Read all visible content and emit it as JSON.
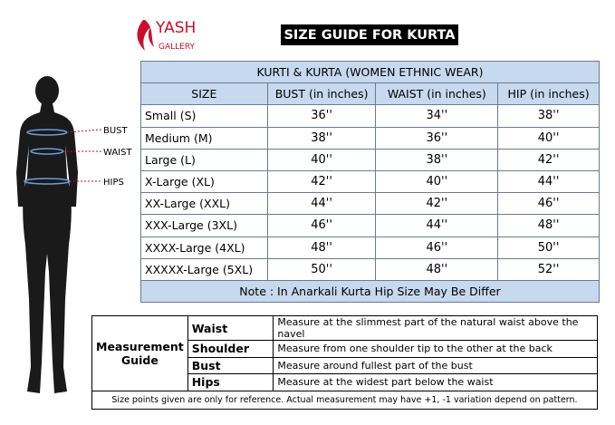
{
  "logo": {
    "name": "YASH",
    "subtitle": "GALLERY"
  },
  "header": {
    "title": "SIZE GUIDE FOR KURTA"
  },
  "figure_labels": [
    "BUST",
    "WAIST",
    "HIPS"
  ],
  "size_table": {
    "caption": "KURTI & KURTA (WOMEN ETHNIC WEAR)",
    "columns": [
      "SIZE",
      "BUST (in inches)",
      "WAIST (in inches)",
      "HIP (in inches)"
    ],
    "rows": [
      [
        "Small (S)",
        "36''",
        "34''",
        "38''"
      ],
      [
        "Medium (M)",
        "38''",
        "36''",
        "40''"
      ],
      [
        "Large (L)",
        "40''",
        "38''",
        "42''"
      ],
      [
        "X-Large (XL)",
        "42''",
        "40''",
        "44''"
      ],
      [
        "XX-Large (XXL)",
        "44''",
        "42''",
        "46''"
      ],
      [
        "XXX-Large (3XL)",
        "46''",
        "44''",
        "48''"
      ],
      [
        "XXXX-Large (4XL)",
        "48''",
        "46''",
        "50''"
      ],
      [
        "XXXXX-Large (5XL)",
        "50''",
        "48''",
        "52''"
      ]
    ],
    "note": "Note : In Anarkali Kurta Hip Size May Be Differ"
  },
  "measurement_guide": {
    "label": "Measurement Guide",
    "rows": [
      {
        "name": "Waist",
        "description": "Measure at the slimmest part of the natural waist above the navel"
      },
      {
        "name": "Shoulder",
        "description": "Measure from one shoulder tip to the other at the back"
      },
      {
        "name": "Bust",
        "description": "Measure around fullest part of the bust"
      },
      {
        "name": "Hips",
        "description": "Measure at the widest part below the waist"
      }
    ],
    "footnote": "Size points given are only for reference. Actual measurement may have +1, -1 variation depend on pattern."
  }
}
